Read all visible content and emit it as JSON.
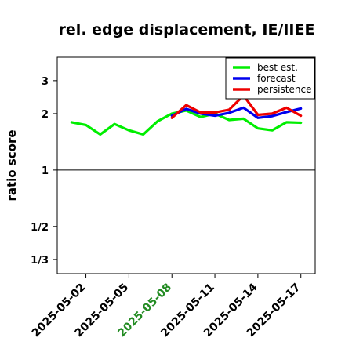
{
  "chart_data": {
    "type": "line",
    "title": "rel. edge displacement, IE/IIEE",
    "ylabel": "ratio score",
    "xlabel": "",
    "y_scale": "log",
    "ylim": [
      0.28,
      4.0
    ],
    "y_ticks": [
      {
        "value": 3,
        "label": "3"
      },
      {
        "value": 2,
        "label": "2"
      },
      {
        "value": 1,
        "label": "1"
      },
      {
        "value": 0.5,
        "label": "1/2"
      },
      {
        "value": 0.3333,
        "label": "1/3"
      }
    ],
    "reference_line": 1,
    "x_range": [
      "2025-04-30",
      "2025-05-18"
    ],
    "x_ticks": [
      {
        "date": "2025-05-02",
        "label": "2025-05-02",
        "color": "#000000"
      },
      {
        "date": "2025-05-05",
        "label": "2025-05-05",
        "color": "#000000"
      },
      {
        "date": "2025-05-08",
        "label": "2025-05-08",
        "color": "#228B22"
      },
      {
        "date": "2025-05-11",
        "label": "2025-05-11",
        "color": "#000000"
      },
      {
        "date": "2025-05-14",
        "label": "2025-05-14",
        "color": "#000000"
      },
      {
        "date": "2025-05-17",
        "label": "2025-05-17",
        "color": "#000000"
      }
    ],
    "legend_position": "top-right",
    "series": [
      {
        "name": "best est.",
        "color": "#00ee00",
        "points": [
          [
            "2025-05-01",
            1.8
          ],
          [
            "2025-05-02",
            1.74
          ],
          [
            "2025-05-03",
            1.55
          ],
          [
            "2025-05-04",
            1.76
          ],
          [
            "2025-05-05",
            1.63
          ],
          [
            "2025-05-06",
            1.55
          ],
          [
            "2025-05-07",
            1.82
          ],
          [
            "2025-05-08",
            2.0
          ],
          [
            "2025-05-09",
            2.08
          ],
          [
            "2025-05-10",
            1.92
          ],
          [
            "2025-05-11",
            2.0
          ],
          [
            "2025-05-12",
            1.85
          ],
          [
            "2025-05-13",
            1.88
          ],
          [
            "2025-05-14",
            1.67
          ],
          [
            "2025-05-15",
            1.63
          ],
          [
            "2025-05-16",
            1.8
          ],
          [
            "2025-05-17",
            1.79
          ]
        ]
      },
      {
        "name": "forecast",
        "color": "#0000ee",
        "points": [
          [
            "2025-05-08",
            1.95
          ],
          [
            "2025-05-09",
            2.12
          ],
          [
            "2025-05-10",
            2.0
          ],
          [
            "2025-05-11",
            1.95
          ],
          [
            "2025-05-12",
            2.02
          ],
          [
            "2025-05-13",
            2.15
          ],
          [
            "2025-05-14",
            1.9
          ],
          [
            "2025-05-15",
            1.94
          ],
          [
            "2025-05-16",
            2.04
          ],
          [
            "2025-05-17",
            2.13
          ]
        ]
      },
      {
        "name": "persistence",
        "color": "#ee0000",
        "points": [
          [
            "2025-05-08",
            1.9
          ],
          [
            "2025-05-09",
            2.22
          ],
          [
            "2025-05-10",
            2.03
          ],
          [
            "2025-05-11",
            2.03
          ],
          [
            "2025-05-12",
            2.1
          ],
          [
            "2025-05-13",
            2.5
          ],
          [
            "2025-05-14",
            1.97
          ],
          [
            "2025-05-15",
            2.0
          ],
          [
            "2025-05-16",
            2.15
          ],
          [
            "2025-05-17",
            1.95
          ]
        ]
      }
    ]
  }
}
